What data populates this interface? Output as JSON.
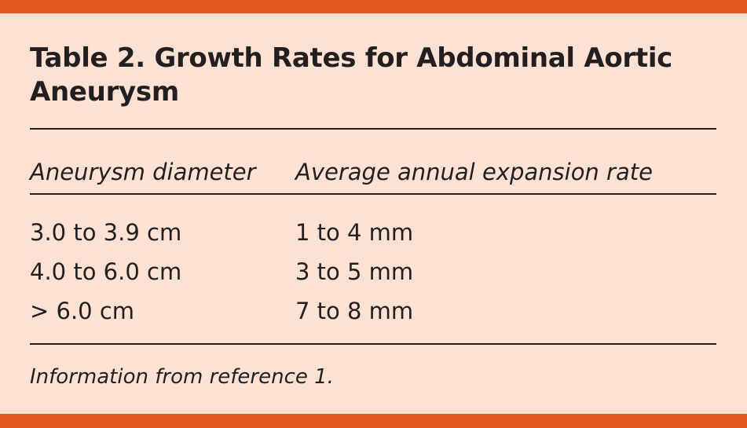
{
  "title": "Table 2. Growth Rates for Abdominal Aortic Aneurysm",
  "columns": [
    "Aneurysm diameter",
    "Average annual expansion rate"
  ],
  "rows": [
    [
      "3.0 to 3.9 cm",
      "1 to 4 mm"
    ],
    [
      "4.0 to 6.0 cm",
      "3 to 5 mm"
    ],
    [
      "> 6.0 cm",
      "7 to 8 mm"
    ]
  ],
  "footnote": "Information from reference 1.",
  "colors": {
    "accent": "#e05a20",
    "background": "#fde2d3",
    "text": "#231f20"
  }
}
